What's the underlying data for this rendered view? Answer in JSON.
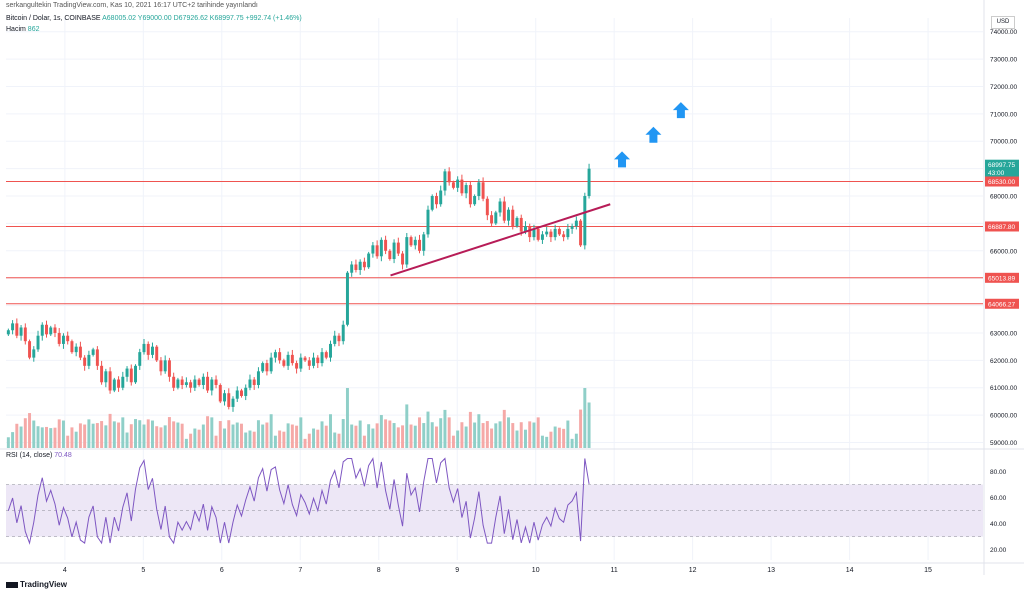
{
  "header": {
    "byline": "serkangultekin TradingView.com, Kas 10, 2021 16:17 UTC+2 tarihinde yayınlandı",
    "symbol": "Bitcoin / Dolar, 1s, COINBASE",
    "ohlc": "A68005.02  Y69000.00  D67926.62  K68997.75  +992.74 (+1.46%)",
    "volume_label": "Hacim",
    "volume_value": "862",
    "currency": "USD"
  },
  "rsi_header": {
    "label": "RSI (14, close)",
    "value": "70.48"
  },
  "brand": "TradingView",
  "colors": {
    "up": "#26a69a",
    "down": "#ef5350",
    "up_vol": "#8fcfc8",
    "down_vol": "#f5a9a7",
    "hline": "#ef5350",
    "trendline": "#b71c57",
    "arrow": "#2196f3",
    "rsi_line": "#7e57c2",
    "rsi_band": "#ede7f6"
  },
  "chart_data": {
    "type": "candlestick",
    "price_axis": {
      "ticks": [
        "74000.00",
        "73000.00",
        "72000.00",
        "71000.00",
        "70000.00",
        "69000.00",
        "68000.00",
        "67000.00",
        "66000.00",
        "65000.00",
        "64000.00",
        "63000.00",
        "62000.00",
        "61000.00",
        "60000.00",
        "59000.00"
      ],
      "tick_values": [
        74000,
        73000,
        72000,
        71000,
        70000,
        69000,
        68000,
        67000,
        66000,
        65000,
        64000,
        63000,
        62000,
        61000,
        60000,
        59000
      ],
      "range": [
        58800,
        74500
      ]
    },
    "time_axis": {
      "ticks": [
        "4",
        "5",
        "6",
        "7",
        "8",
        "9",
        "10",
        "11",
        "12",
        "13",
        "14",
        "15"
      ],
      "range_days": [
        3.25,
        15.7
      ]
    },
    "price_labels": [
      {
        "text": "68997.75",
        "sub": "43:00",
        "value": 68997.75,
        "color": "#26a69a"
      },
      {
        "text": "68530.00",
        "value": 68530,
        "color": "#ef5350"
      },
      {
        "text": "66887.80",
        "value": 66887.8,
        "color": "#ef5350"
      },
      {
        "text": "65013.89",
        "value": 65013.89,
        "color": "#ef5350"
      },
      {
        "text": "64066.27",
        "value": 64066.27,
        "color": "#ef5350"
      }
    ],
    "horizontal_lines": [
      68530,
      66887.8,
      65013.89,
      64066.27
    ],
    "trendline": {
      "from": {
        "day": 8.15,
        "price": 65100
      },
      "to": {
        "day": 10.95,
        "price": 67700
      }
    },
    "up_arrows": [
      {
        "day": 11.1,
        "price": 69300
      },
      {
        "day": 11.5,
        "price": 70200
      },
      {
        "day": 11.85,
        "price": 71100
      }
    ],
    "rsi": {
      "axis_ticks": [
        "80.00",
        "60.00",
        "40.00",
        "20.00"
      ],
      "tick_values": [
        80,
        60,
        40,
        20
      ],
      "range": [
        12,
        95
      ],
      "band": [
        30,
        70
      ],
      "midline": 50,
      "last": 70.48
    },
    "closes": [
      63100,
      63350,
      62900,
      63200,
      62700,
      62100,
      62400,
      62900,
      63300,
      62950,
      63200,
      63000,
      62600,
      62900,
      62700,
      62300,
      62500,
      62100,
      61800,
      62200,
      62400,
      61800,
      61200,
      61600,
      60900,
      61300,
      61000,
      61400,
      61700,
      61200,
      61800,
      62300,
      62600,
      62200,
      62500,
      62000,
      61600,
      62000,
      61400,
      61000,
      61300,
      61100,
      61200,
      61000,
      61300,
      61100,
      61400,
      60900,
      61300,
      61100,
      60500,
      60800,
      60300,
      60600,
      60900,
      60700,
      61000,
      61300,
      61100,
      61600,
      61900,
      61600,
      62100,
      62300,
      62000,
      61800,
      62200,
      61900,
      61700,
      62100,
      62000,
      61800,
      62100,
      61900,
      62300,
      62100,
      62600,
      62900,
      62700,
      63300,
      65200,
      65500,
      65300,
      65600,
      65400,
      65900,
      66200,
      65800,
      66400,
      66000,
      65700,
      66300,
      65900,
      65500,
      66500,
      66200,
      66400,
      66000,
      66600,
      67500,
      68000,
      67700,
      68200,
      68900,
      68500,
      68300,
      68600,
      68100,
      68400,
      67700,
      68000,
      68500,
      67900,
      67300,
      67000,
      67400,
      67800,
      67100,
      67500,
      66900,
      67200,
      66700,
      66900,
      66500,
      66800,
      66400,
      66600,
      66700,
      66500,
      66800,
      66600,
      66500,
      66800,
      66900,
      67100,
      66200,
      68000,
      68998
    ]
  }
}
